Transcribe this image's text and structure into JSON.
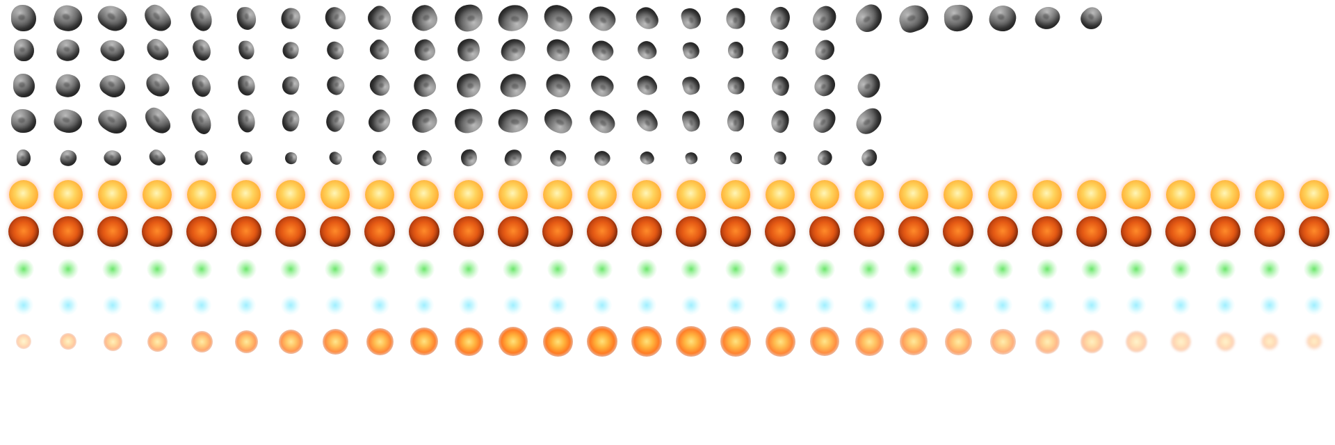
{
  "sheet": {
    "description_name": "sprite-sheet",
    "background": "#ffffff",
    "rows": [
      {
        "name": "asteroid-large",
        "kind": "asteroid",
        "count": 25,
        "color": "#6f6f6f"
      },
      {
        "name": "asteroid-small-a",
        "kind": "asteroid",
        "count": 19,
        "color": "#4f4f4f"
      },
      {
        "name": "asteroid-small-b",
        "kind": "asteroid",
        "count": 20,
        "color": "#5a5a5a"
      },
      {
        "name": "asteroid-wide",
        "kind": "asteroid",
        "count": 20,
        "color": "#666666"
      },
      {
        "name": "asteroid-tiny",
        "kind": "asteroid",
        "count": 20,
        "color": "#3f3f3f"
      },
      {
        "name": "sun-sprite",
        "kind": "sun",
        "count": 30,
        "color": "#ffb23a"
      },
      {
        "name": "red-planet-sprite",
        "kind": "redplanet",
        "count": 30,
        "color": "#e55a14"
      },
      {
        "name": "green-sparkle",
        "kind": "greenglow",
        "count": 30,
        "color": "#6be56b"
      },
      {
        "name": "cyan-sparkle",
        "kind": "cyanglow",
        "count": 30,
        "color": "#9fefff"
      },
      {
        "name": "explosion-sequence",
        "kind": "explosion",
        "count": 30,
        "color": "#ff7b22"
      }
    ]
  }
}
